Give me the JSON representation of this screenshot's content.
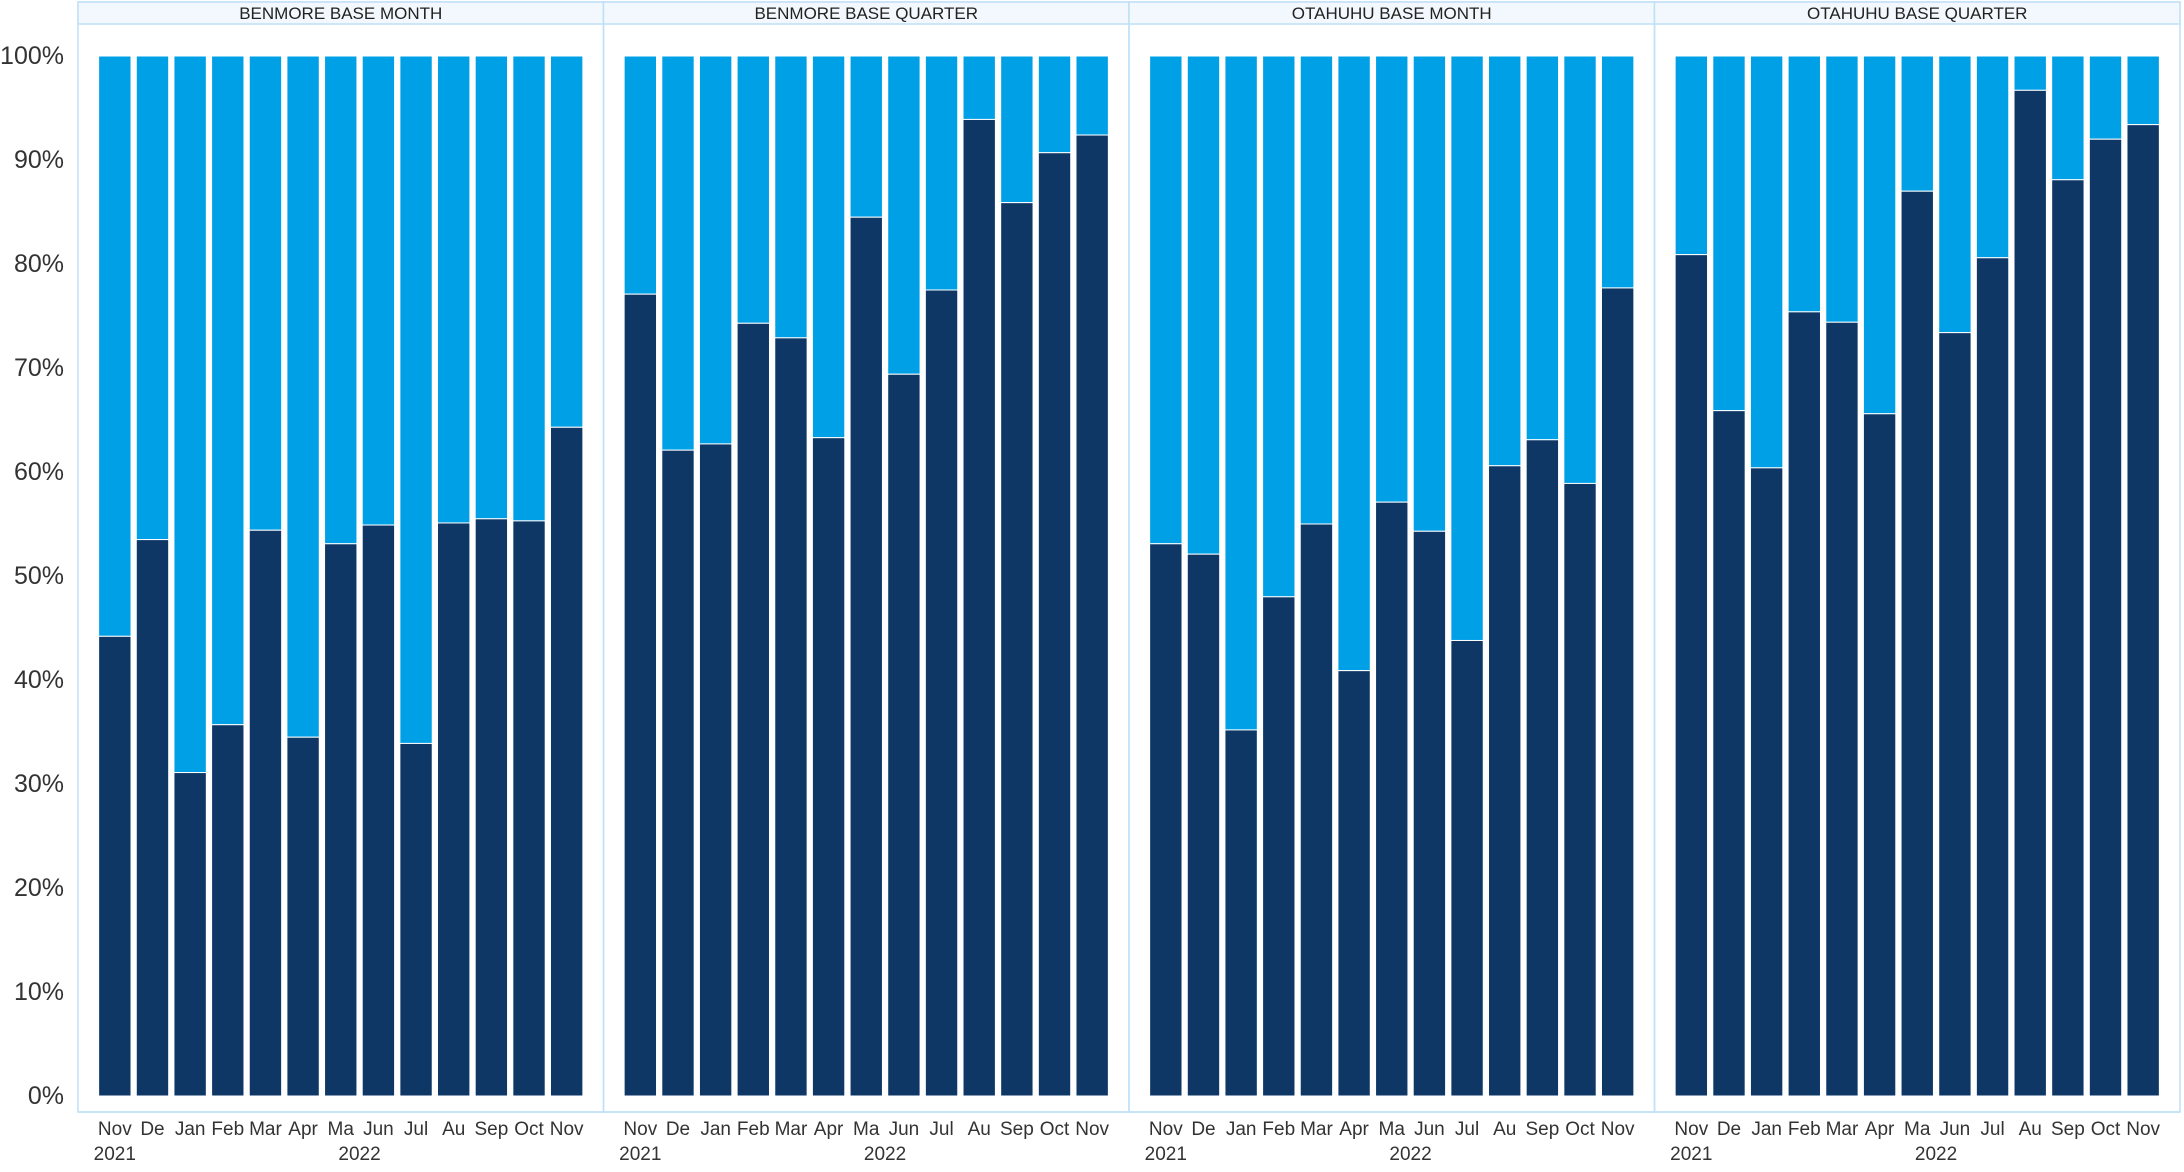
{
  "chart_data": {
    "type": "bar",
    "stacked": true,
    "normalized": true,
    "ylim": [
      0,
      100
    ],
    "yticks": [
      "0%",
      "10%",
      "20%",
      "30%",
      "40%",
      "50%",
      "60%",
      "70%",
      "80%",
      "90%",
      "100%"
    ],
    "colors": {
      "lower": "#0e3766",
      "upper": "#00a0e6",
      "border": "#bfe0f7",
      "header_bg": "#f2f8fd"
    },
    "categories": [
      "Nov",
      "De",
      "Jan",
      "Feb",
      "Mar",
      "Apr",
      "Ma",
      "Jun",
      "Jul",
      "Au",
      "Sep",
      "Oct",
      "Nov"
    ],
    "year_labels": [
      {
        "label": "2021",
        "at_index": 0.5
      },
      {
        "label": "2022",
        "at_index": 7
      }
    ],
    "panels": [
      {
        "title": "BENMORE BASE MONTH",
        "values": [
          44.2,
          53.5,
          31.1,
          35.7,
          54.4,
          34.5,
          53.1,
          54.9,
          33.9,
          55.1,
          55.5,
          55.3,
          64.3
        ]
      },
      {
        "title": "BENMORE BASE QUARTER",
        "values": [
          77.1,
          62.1,
          62.7,
          74.3,
          72.9,
          63.3,
          84.5,
          69.4,
          77.5,
          93.9,
          85.9,
          90.7,
          92.4
        ]
      },
      {
        "title": "OTAHUHU BASE MONTH",
        "values": [
          53.1,
          52.1,
          35.2,
          48.0,
          55.0,
          40.9,
          57.1,
          54.3,
          43.8,
          60.6,
          63.1,
          58.9,
          77.7
        ]
      },
      {
        "title": "OTAHUHU BASE QUARTER",
        "values": [
          80.9,
          65.9,
          60.4,
          75.4,
          74.4,
          65.6,
          87.0,
          73.4,
          80.6,
          96.7,
          88.1,
          92.0,
          93.4
        ]
      }
    ]
  }
}
